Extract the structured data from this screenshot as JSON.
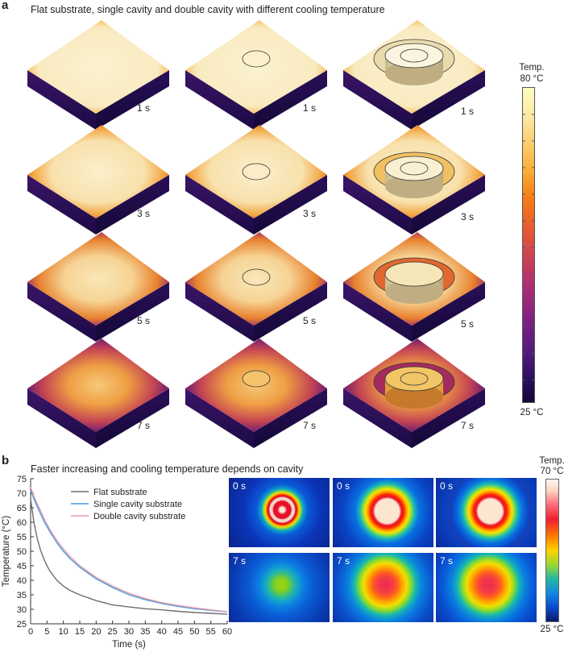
{
  "panel_a": {
    "letter": "a",
    "caption": "Flat substrate, single cavity and double cavity with different cooling temperature",
    "rows": [
      {
        "label": "1 s",
        "heat": 1.0
      },
      {
        "label": "3 s",
        "heat": 0.78
      },
      {
        "label": "5 s",
        "heat": 0.55
      },
      {
        "label": "7 s",
        "heat": 0.32
      }
    ],
    "colorbar": {
      "title": "Temp.",
      "max": "80 °C",
      "min": "25 °C"
    }
  },
  "panel_b": {
    "letter": "b",
    "caption": "Faster increasing and cooling temperature depends on cavity",
    "thumb_rows": [
      {
        "label": "0 s"
      },
      {
        "label": "7 s"
      }
    ],
    "colorbar": {
      "title": "Temp.",
      "max": "70 °C",
      "min": "25 °C"
    }
  },
  "chart_data": {
    "type": "line",
    "xlabel": "Time (s)",
    "ylabel": "Temperature (°C)",
    "xlim": [
      0,
      60
    ],
    "ylim": [
      25,
      75
    ],
    "xticks": [
      0,
      5,
      10,
      15,
      20,
      25,
      30,
      35,
      40,
      45,
      50,
      55,
      60
    ],
    "yticks": [
      25,
      30,
      35,
      40,
      45,
      50,
      55,
      60,
      65,
      70,
      75
    ],
    "legend_position": "top-right",
    "series": [
      {
        "name": "Flat substrate",
        "color": "#6e6e6e",
        "x": [
          0,
          1,
          2,
          3,
          4,
          5,
          6,
          8,
          10,
          12,
          15,
          20,
          25,
          30,
          35,
          40,
          45,
          50,
          55,
          60
        ],
        "y": [
          68,
          60,
          54.5,
          50.5,
          47.5,
          45,
          43,
          40,
          38,
          36.5,
          35,
          33,
          31.5,
          30.8,
          30.2,
          29.8,
          29.3,
          28.9,
          28.6,
          28.3
        ]
      },
      {
        "name": "Single cavity substrate",
        "color": "#4a9be0",
        "x": [
          0,
          1,
          2,
          3,
          4,
          5,
          6,
          8,
          10,
          12,
          15,
          20,
          25,
          30,
          35,
          40,
          45,
          50,
          55,
          60
        ],
        "y": [
          71,
          68,
          65.5,
          63,
          60.5,
          58.5,
          56.5,
          53,
          50,
          47.5,
          44.5,
          40.5,
          37.5,
          35,
          33.3,
          32,
          31,
          30.2,
          29.6,
          29.1
        ]
      },
      {
        "name": "Double cavity substrate",
        "color": "#e89aaa",
        "x": [
          0,
          1,
          2,
          3,
          4,
          5,
          6,
          8,
          10,
          12,
          15,
          20,
          25,
          30,
          35,
          40,
          45,
          50,
          55,
          60
        ],
        "y": [
          72,
          69,
          66.5,
          64,
          61.5,
          59.3,
          57.3,
          53.8,
          50.8,
          48.2,
          45,
          41,
          38,
          35.5,
          33.7,
          32.3,
          31.3,
          30.5,
          29.8,
          29.2
        ]
      }
    ]
  }
}
